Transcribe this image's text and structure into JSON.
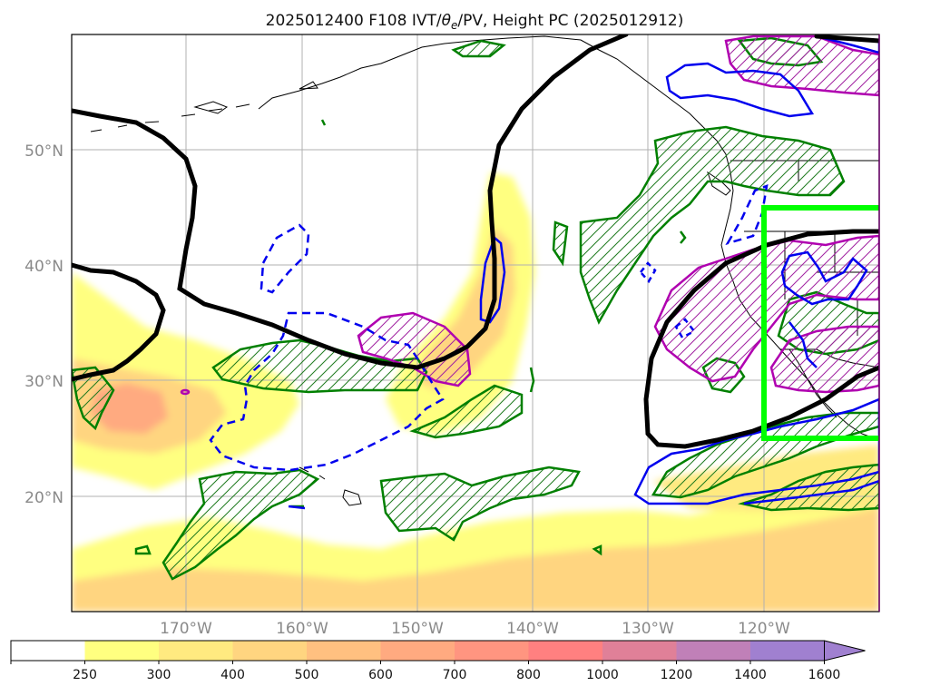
{
  "title": "2025012400 F108 IVT/θe/PV, Height PC (2025012912)",
  "title_parts": {
    "pre": "2025012400 F108 IVT/",
    "theta": "θ",
    "sub": "e",
    "post": "/PV, Height PC (2025012912)"
  },
  "lat_labels": [
    "50°N",
    "40°N",
    "30°N",
    "20°N"
  ],
  "lon_labels": [
    "170°W",
    "160°W",
    "150°W",
    "140°W",
    "130°W",
    "120°W"
  ],
  "colorbar": {
    "ticks": [
      "250",
      "300",
      "400",
      "500",
      "600",
      "700",
      "800",
      "1000",
      "1200",
      "1400",
      "1600"
    ],
    "colors": [
      "#ffffff",
      "#ffff80",
      "#ffea80",
      "#ffd580",
      "#ffc080",
      "#ffaa80",
      "#ff9580",
      "#ff8080",
      "#e08098",
      "#c080b8",
      "#a080d0"
    ],
    "extend": "max"
  },
  "contour_colors": {
    "height_pc": "#000000",
    "theta_e": "#008000",
    "pv": "#b000b0",
    "ivt_outline": "#0000ee",
    "highlight_box": "#00ff00"
  }
}
